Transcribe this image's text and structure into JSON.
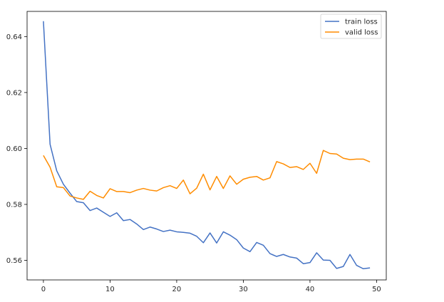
{
  "chart_data": {
    "type": "line",
    "title": "",
    "xlabel": "",
    "ylabel": "",
    "xlim": [
      -2.45,
      51.45
    ],
    "ylim": [
      0.553,
      0.649
    ],
    "xticks": [
      0,
      10,
      20,
      30,
      40,
      50
    ],
    "yticks": [
      0.56,
      0.58,
      0.6,
      0.62,
      0.64
    ],
    "ytick_labels": [
      "0.56",
      "0.58",
      "0.60",
      "0.62",
      "0.64"
    ],
    "grid": false,
    "legend": {
      "position": "top-right"
    },
    "x": [
      0,
      1,
      2,
      3,
      4,
      5,
      6,
      7,
      8,
      9,
      10,
      11,
      12,
      13,
      14,
      15,
      16,
      17,
      18,
      19,
      20,
      21,
      22,
      23,
      24,
      25,
      26,
      27,
      28,
      29,
      30,
      31,
      32,
      33,
      34,
      35,
      36,
      37,
      38,
      39,
      40,
      41,
      42,
      43,
      44,
      45,
      46,
      47,
      48,
      49
    ],
    "series": [
      {
        "name": "train loss",
        "color": "#4472c4",
        "values": [
          0.6455,
          0.6015,
          0.592,
          0.5872,
          0.584,
          0.581,
          0.5806,
          0.5778,
          0.5787,
          0.5772,
          0.5757,
          0.577,
          0.5742,
          0.5746,
          0.573,
          0.571,
          0.5719,
          0.5712,
          0.5703,
          0.5708,
          0.5702,
          0.57,
          0.5697,
          0.5686,
          0.5663,
          0.5698,
          0.5662,
          0.5702,
          0.569,
          0.5674,
          0.5644,
          0.5631,
          0.5664,
          0.5654,
          0.5624,
          0.5614,
          0.5621,
          0.5612,
          0.5608,
          0.5588,
          0.5592,
          0.5627,
          0.5601,
          0.56,
          0.5571,
          0.5578,
          0.5621,
          0.5582,
          0.557,
          0.5573
        ]
      },
      {
        "name": "valid loss",
        "color": "#ff8c00",
        "values": [
          0.5975,
          0.5933,
          0.5863,
          0.586,
          0.583,
          0.5823,
          0.5818,
          0.5847,
          0.5832,
          0.5823,
          0.5856,
          0.5846,
          0.5846,
          0.5842,
          0.5851,
          0.5857,
          0.5851,
          0.5848,
          0.586,
          0.5867,
          0.5857,
          0.5887,
          0.5838,
          0.5858,
          0.5908,
          0.5852,
          0.59,
          0.5857,
          0.5902,
          0.5872,
          0.589,
          0.5897,
          0.59,
          0.5887,
          0.5895,
          0.5953,
          0.5945,
          0.5932,
          0.5935,
          0.5925,
          0.5947,
          0.5911,
          0.5993,
          0.5982,
          0.598,
          0.5965,
          0.596,
          0.5962,
          0.5962,
          0.5952
        ]
      }
    ]
  }
}
